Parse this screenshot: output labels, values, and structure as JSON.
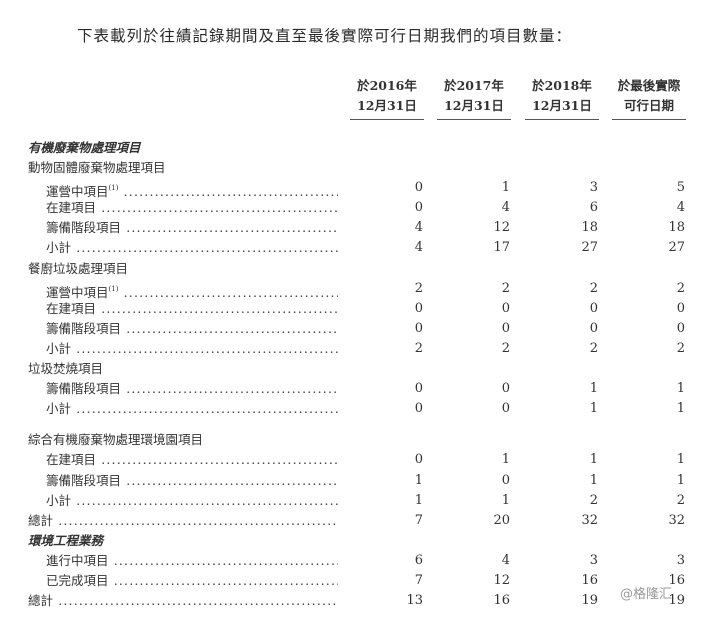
{
  "intro": "下表載列於往績記錄期間及直至最後實際可行日期我們的項目數量：",
  "columns": [
    {
      "line1": "於2016年",
      "line2": "12月31日"
    },
    {
      "line1": "於2017年",
      "line2": "12月31日"
    },
    {
      "line1": "於2018年",
      "line2": "12月31日"
    },
    {
      "line1": "於最後實際",
      "line2": "可行日期"
    }
  ],
  "rows": [
    {
      "label": "有機廢棄物處理項目",
      "type": "section"
    },
    {
      "label": "動物固體廢棄物處理項目",
      "type": "group"
    },
    {
      "label": "運營中項目",
      "note": "(1)",
      "values": [
        "0",
        "1",
        "3",
        "5"
      ]
    },
    {
      "label": "在建項目",
      "values": [
        "0",
        "4",
        "6",
        "4"
      ]
    },
    {
      "label": "籌備階段項目",
      "values": [
        "4",
        "12",
        "18",
        "18"
      ]
    },
    {
      "label": "小計",
      "values": [
        "4",
        "17",
        "27",
        "27"
      ]
    },
    {
      "label": "餐廚垃圾處理項目",
      "type": "group"
    },
    {
      "label": "運營中項目",
      "note": "(1)",
      "values": [
        "2",
        "2",
        "2",
        "2"
      ]
    },
    {
      "label": "在建項目",
      "values": [
        "0",
        "0",
        "0",
        "0"
      ]
    },
    {
      "label": "籌備階段項目",
      "values": [
        "0",
        "0",
        "0",
        "0"
      ]
    },
    {
      "label": "小計",
      "values": [
        "2",
        "2",
        "2",
        "2"
      ]
    },
    {
      "label": "垃圾焚燒項目",
      "type": "group"
    },
    {
      "label": "籌備階段項目",
      "values": [
        "0",
        "0",
        "1",
        "1"
      ]
    },
    {
      "label": "小計",
      "values": [
        "0",
        "0",
        "1",
        "1"
      ]
    },
    {
      "label": "綜合有機廢棄物處理環境園項目",
      "type": "group",
      "gap": true
    },
    {
      "label": "在建項目",
      "values": [
        "0",
        "1",
        "1",
        "1"
      ]
    },
    {
      "label": "籌備階段項目",
      "values": [
        "1",
        "0",
        "1",
        "1"
      ]
    },
    {
      "label": "小計",
      "values": [
        "1",
        "1",
        "2",
        "2"
      ]
    },
    {
      "label": "總計",
      "type": "total",
      "values": [
        "7",
        "20",
        "32",
        "32"
      ]
    },
    {
      "label": "環境工程業務",
      "type": "section"
    },
    {
      "label": "進行中項目",
      "values": [
        "6",
        "4",
        "3",
        "3"
      ]
    },
    {
      "label": "已完成項目",
      "values": [
        "7",
        "12",
        "16",
        "16"
      ]
    },
    {
      "label": "總計",
      "type": "total",
      "values": [
        "13",
        "16",
        "19",
        "19"
      ]
    }
  ],
  "watermark": "@格隆汇"
}
